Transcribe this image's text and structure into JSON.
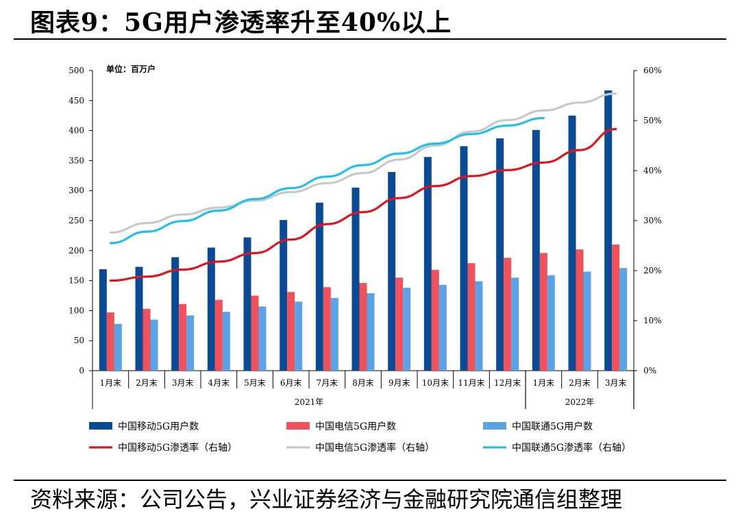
{
  "title": "图表9：5G用户渗透率升至40%以上",
  "source": "资料来源：公司公告，兴业证券经济与金融研究院通信组整理",
  "chart_data": {
    "type": "bar",
    "unit_label": "单位：百万户",
    "categories": [
      "1月末",
      "2月末",
      "3月末",
      "4月末",
      "5月末",
      "6月末",
      "7月末",
      "8月末",
      "9月末",
      "10月末",
      "11月末",
      "12月末",
      "1月末",
      "2月末",
      "3月末"
    ],
    "years": [
      {
        "label": "2021年",
        "span": 12
      },
      {
        "label": "2022年",
        "span": 3
      }
    ],
    "ylim": [
      0,
      500
    ],
    "y_ticks": [
      "0",
      "50",
      "100",
      "150",
      "200",
      "250",
      "300",
      "350",
      "400",
      "450",
      "500"
    ],
    "y2lim": [
      0,
      60
    ],
    "y2_ticks": [
      "0%",
      "10%",
      "20%",
      "30%",
      "40%",
      "50%",
      "60%"
    ],
    "series": [
      {
        "name": "中国移动5G用户数",
        "kind": "bar",
        "color": "#0b4a94",
        "values": [
          169,
          173,
          189,
          205,
          222,
          251,
          280,
          305,
          331,
          356,
          374,
          387,
          401,
          425,
          467
        ]
      },
      {
        "name": "中国电信5G用户数",
        "kind": "bar",
        "color": "#f0525b",
        "values": [
          97,
          103,
          111,
          118,
          125,
          131,
          139,
          146,
          155,
          168,
          179,
          188,
          196,
          202,
          210
        ]
      },
      {
        "name": "中国联通5G用户数",
        "kind": "bar",
        "color": "#5ba3e6",
        "values": [
          78,
          85,
          92,
          98,
          107,
          115,
          121,
          129,
          138,
          143,
          149,
          155,
          159,
          165,
          171
        ]
      },
      {
        "name": "中国移动5G渗透率（右轴）",
        "kind": "line",
        "axis": "right",
        "color": "#e0141e",
        "values": [
          18.0,
          18.8,
          20.2,
          21.8,
          23.5,
          26.2,
          29.3,
          31.7,
          34.5,
          36.9,
          38.9,
          40.1,
          41.6,
          44.1,
          48.3
        ]
      },
      {
        "name": "中国电信5G渗透率（右轴）",
        "kind": "line",
        "axis": "right",
        "color": "#c8c8c8",
        "values": [
          27.6,
          29.5,
          31.2,
          32.6,
          34.0,
          35.7,
          37.5,
          39.5,
          42.2,
          45.0,
          47.8,
          50.1,
          52.0,
          53.6,
          55.4
        ]
      },
      {
        "name": "中国联通5G渗透率（右轴）",
        "kind": "line",
        "axis": "right",
        "color": "#20c0ea",
        "values": [
          25.5,
          27.8,
          29.9,
          32.0,
          34.3,
          36.5,
          38.8,
          41.1,
          43.4,
          45.4,
          47.3,
          49.0,
          50.5,
          null,
          null
        ]
      }
    ]
  }
}
